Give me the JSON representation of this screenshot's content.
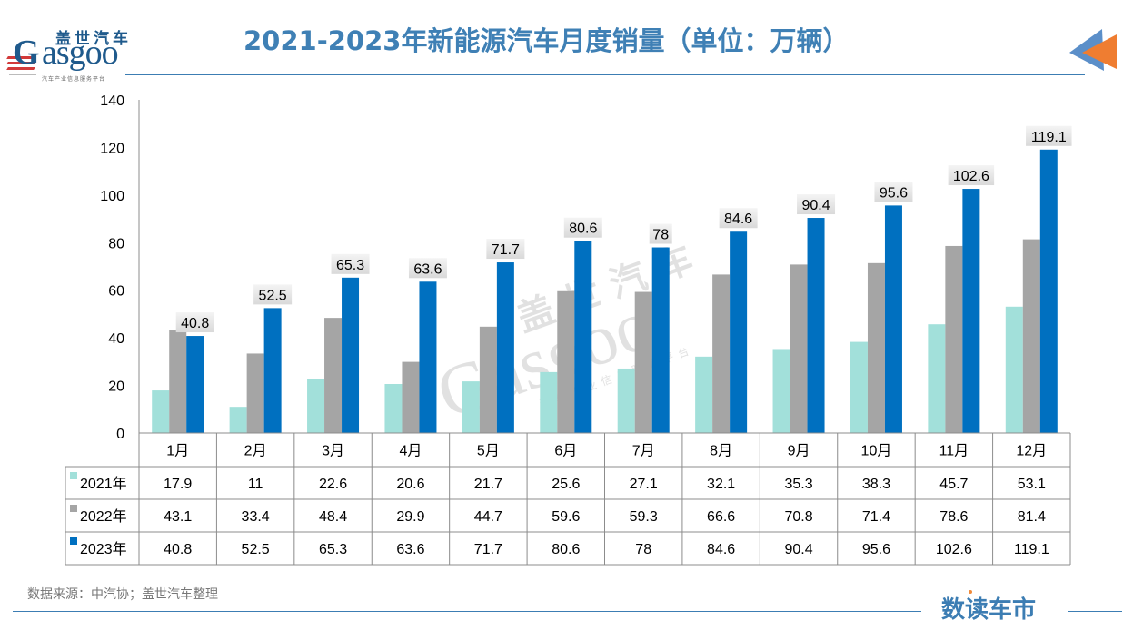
{
  "header": {
    "logo_cn": "盖世汽车",
    "logo_en": "asgoo",
    "logo_g": "G",
    "logo_sub": "汽车产业信息服务平台",
    "title": "2021-2023年新能源汽车月度销量（单位：万辆）"
  },
  "footer": {
    "source": "数据来源：中汽协；盖世汽车整理",
    "brand": "数读车市"
  },
  "watermark": {
    "cn": "盖世汽车",
    "en": "Gasgoo",
    "sub": "汽车产业信息服务平台"
  },
  "colors": {
    "accent": "#3c7db3",
    "title": "#3f80b5",
    "series_2021": "#a2e0da",
    "series_2022": "#a5a5a5",
    "series_2023": "#0070c0",
    "arrow_blue": "#5b8fc9",
    "arrow_orange": "#ef7d31"
  },
  "chart_data": {
    "type": "bar",
    "title": "2021-2023年新能源汽车月度销量（单位：万辆）",
    "xlabel": "",
    "ylabel": "",
    "ylim": [
      0,
      140
    ],
    "yticks": [
      0,
      20,
      40,
      60,
      80,
      100,
      120,
      140
    ],
    "grid": false,
    "legend": "data-table",
    "categories": [
      "1月",
      "2月",
      "3月",
      "4月",
      "5月",
      "6月",
      "7月",
      "8月",
      "9月",
      "10月",
      "11月",
      "12月"
    ],
    "series": [
      {
        "name": "2021年",
        "color": "#a2e0da",
        "values": [
          17.9,
          11,
          22.6,
          20.6,
          21.7,
          25.6,
          27.1,
          32.1,
          35.3,
          38.3,
          45.7,
          53.1
        ],
        "labels": false
      },
      {
        "name": "2022年",
        "color": "#a5a5a5",
        "values": [
          43.1,
          33.4,
          48.4,
          29.9,
          44.7,
          59.6,
          59.3,
          66.6,
          70.8,
          71.4,
          78.6,
          81.4
        ],
        "labels": false
      },
      {
        "name": "2023年",
        "color": "#0070c0",
        "values": [
          40.8,
          52.5,
          65.3,
          63.6,
          71.7,
          80.6,
          78,
          84.6,
          90.4,
          95.6,
          102.6,
          119.1
        ],
        "labels": true
      }
    ],
    "table_cells": [
      [
        "17.9",
        "11",
        "22.6",
        "20.6",
        "21.7",
        "25.6",
        "27.1",
        "32.1",
        "35.3",
        "38.3",
        "45.7",
        "53.1"
      ],
      [
        "43.1",
        "33.4",
        "48.4",
        "29.9",
        "44.7",
        "59.6",
        "59.3",
        "66.6",
        "70.8",
        "71.4",
        "78.6",
        "81.4"
      ],
      [
        "40.8",
        "52.5",
        "65.3",
        "63.6",
        "71.7",
        "80.6",
        "78",
        "84.6",
        "90.4",
        "95.6",
        "102.6",
        "119.1"
      ]
    ]
  }
}
